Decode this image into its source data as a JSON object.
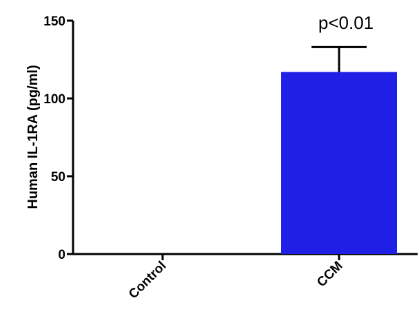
{
  "chart_data": {
    "type": "bar",
    "categories": [
      "Control",
      "CCM"
    ],
    "values": [
      0,
      117
    ],
    "errors": [
      0,
      16
    ],
    "title": "",
    "xlabel": "",
    "ylabel": "Human IL-1RA (pg/ml)",
    "ylim": [
      0,
      150
    ],
    "yticks": [
      0,
      50,
      100,
      150
    ],
    "bar_color": "#1f1fe6",
    "annotation": "p<0.01",
    "grid": false
  }
}
